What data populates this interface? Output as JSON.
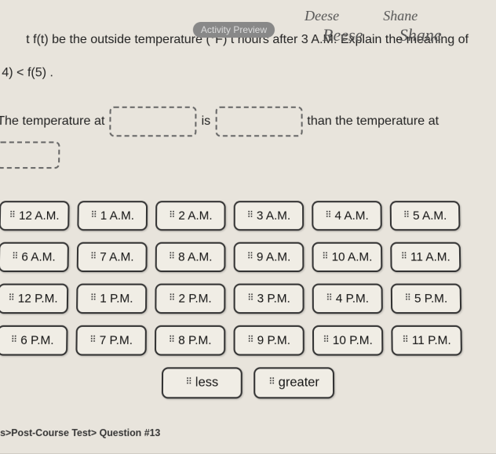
{
  "handwriting": {
    "name1_top": "Deese",
    "name2_top": "Shane",
    "name1": "Reese",
    "name2": "Shane"
  },
  "badge": "Activity Preview",
  "question": {
    "line1_prefix": "t f(t) be the outside temperature (°F) t hours after 3 A.M. Explain the meaning of",
    "line2": "4) < f(5) .",
    "sentence_part1": "The temperature at",
    "sentence_is": "is",
    "sentence_part2": "than the temperature at"
  },
  "tiles": {
    "rows": [
      [
        "12 A.M.",
        "1 A.M.",
        "2 A.M.",
        "3 A.M.",
        "4 A.M.",
        "5 A.M."
      ],
      [
        "6 A.M.",
        "7 A.M.",
        "8 A.M.",
        "9 A.M.",
        "10 A.M.",
        "11 A.M."
      ],
      [
        "12 P.M.",
        "1 P.M.",
        "2 P.M.",
        "3 P.M.",
        "4 P.M.",
        "5 P.M."
      ],
      [
        "6 P.M.",
        "7 P.M.",
        "8 P.M.",
        "9 P.M.",
        "10 P.M.",
        "11 P.M."
      ]
    ],
    "comparison": [
      "less",
      "greater"
    ]
  },
  "footer": "s>Post-Course Test> Question #13",
  "colors": {
    "paper_bg": "#e8e4dc",
    "body_bg": "#b8b4ac",
    "tile_bg": "#f0ede5",
    "tile_border": "#333333",
    "text": "#222222",
    "dashed_border": "#666666"
  }
}
